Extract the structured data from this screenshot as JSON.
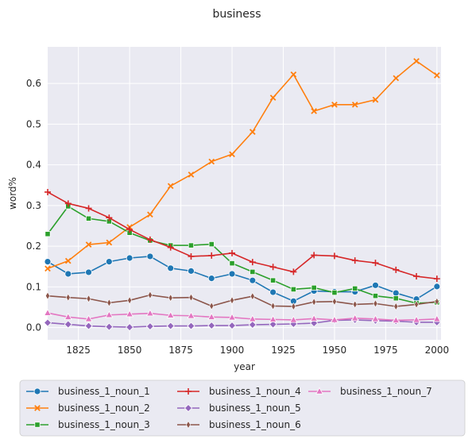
{
  "chart_data": {
    "type": "line",
    "title": "business",
    "xlabel": "year",
    "ylabel": "word%",
    "xlim": [
      1810,
      2002
    ],
    "ylim": [
      -0.03,
      0.69
    ],
    "x_ticks": [
      1825,
      1850,
      1875,
      1900,
      1925,
      1950,
      1975,
      2000
    ],
    "y_ticks": [
      0.0,
      0.1,
      0.2,
      0.3,
      0.4,
      0.5,
      0.6
    ],
    "y_tick_labels": [
      "0.0",
      "0.1",
      "0.2",
      "0.3",
      "0.4",
      "0.5",
      "0.6"
    ],
    "grid": true,
    "legend_position": "bottom",
    "x": [
      1810,
      1820,
      1830,
      1840,
      1850,
      1860,
      1870,
      1880,
      1890,
      1900,
      1910,
      1920,
      1930,
      1940,
      1950,
      1960,
      1970,
      1980,
      1990,
      2000
    ],
    "series": [
      {
        "name": "business_1_noun_1",
        "color": "#1f77b4",
        "marker": "circle",
        "values": [
          0.162,
          0.132,
          0.136,
          0.162,
          0.171,
          0.175,
          0.146,
          0.139,
          0.121,
          0.132,
          0.116,
          0.087,
          0.065,
          0.09,
          0.088,
          0.088,
          0.104,
          0.085,
          0.07,
          0.101
        ]
      },
      {
        "name": "business_1_noun_2",
        "color": "#ff7f0e",
        "marker": "x",
        "values": [
          0.145,
          0.164,
          0.204,
          0.209,
          0.247,
          0.278,
          0.348,
          0.376,
          0.408,
          0.426,
          0.481,
          0.565,
          0.622,
          0.532,
          0.548,
          0.548,
          0.56,
          0.613,
          0.655,
          0.62
        ]
      },
      {
        "name": "business_1_noun_3",
        "color": "#2ca02c",
        "marker": "square",
        "values": [
          0.23,
          0.298,
          0.268,
          0.261,
          0.233,
          0.214,
          0.202,
          0.202,
          0.205,
          0.158,
          0.137,
          0.116,
          0.094,
          0.098,
          0.086,
          0.096,
          0.078,
          0.072,
          0.06,
          0.062
        ]
      },
      {
        "name": "business_1_noun_4",
        "color": "#d62728",
        "marker": "plus",
        "values": [
          0.333,
          0.305,
          0.293,
          0.27,
          0.241,
          0.216,
          0.197,
          0.175,
          0.177,
          0.183,
          0.161,
          0.149,
          0.137,
          0.178,
          0.176,
          0.165,
          0.159,
          0.142,
          0.126,
          0.12
        ]
      },
      {
        "name": "business_1_noun_5",
        "color": "#9467bd",
        "marker": "diamond",
        "values": [
          0.012,
          0.008,
          0.004,
          0.002,
          0.001,
          0.003,
          0.004,
          0.004,
          0.005,
          0.005,
          0.007,
          0.008,
          0.009,
          0.011,
          0.018,
          0.019,
          0.017,
          0.016,
          0.013,
          0.013
        ]
      },
      {
        "name": "business_1_noun_6",
        "color": "#8c564b",
        "marker": "thin_diamond",
        "values": [
          0.078,
          0.074,
          0.071,
          0.061,
          0.067,
          0.08,
          0.073,
          0.074,
          0.053,
          0.067,
          0.077,
          0.053,
          0.052,
          0.063,
          0.064,
          0.057,
          0.059,
          0.052,
          0.057,
          0.064
        ]
      },
      {
        "name": "business_1_noun_7",
        "color": "#e377c2",
        "marker": "triangle",
        "values": [
          0.036,
          0.026,
          0.021,
          0.031,
          0.033,
          0.035,
          0.03,
          0.029,
          0.026,
          0.025,
          0.021,
          0.02,
          0.019,
          0.022,
          0.019,
          0.023,
          0.021,
          0.018,
          0.019,
          0.021
        ]
      }
    ]
  }
}
